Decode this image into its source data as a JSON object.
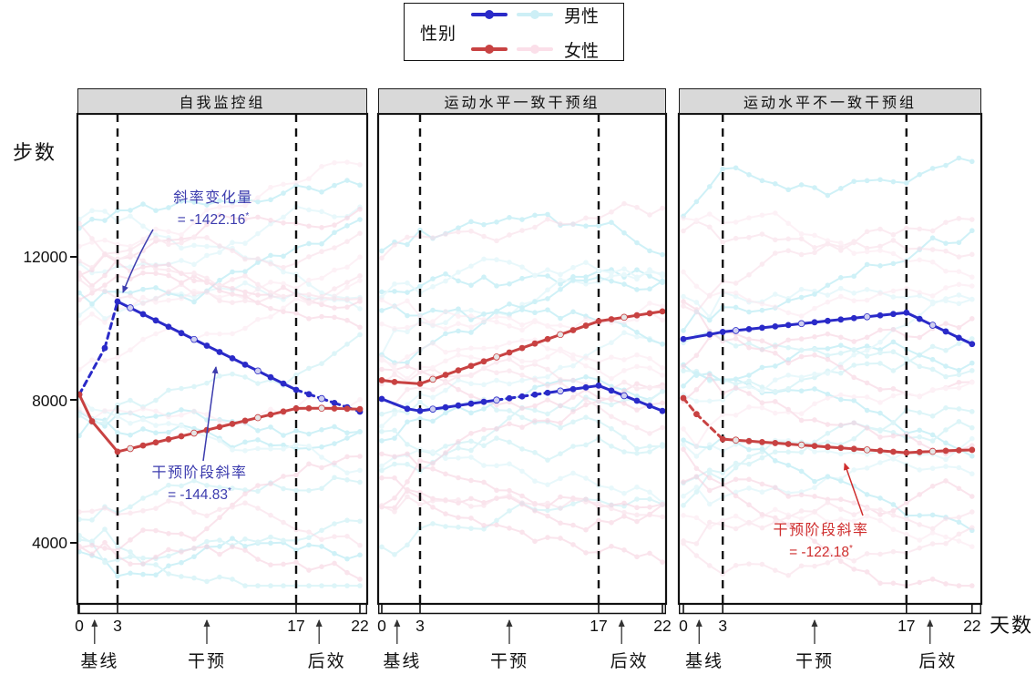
{
  "figure": {
    "background": "#ffffff"
  },
  "legend": {
    "title": "性别",
    "items": [
      {
        "label": "男性",
        "mean_color": "#2a2ac8",
        "individual_color": "#cdeff6"
      },
      {
        "label": "女性",
        "mean_color": "#c84242",
        "individual_color": "#fbdfe9"
      }
    ]
  },
  "axes": {
    "y_title": "步数",
    "x_title": "天数",
    "y_tick_labels": [
      "12000",
      "8000",
      "4000"
    ],
    "x_tick_labels": [
      "0",
      "3",
      "17",
      "22"
    ]
  },
  "individual_trajectories": {
    "count_per_sex_per_panel": 13,
    "opacity": 0.55,
    "male_colors": [
      "#a9e6f1",
      "#d6f3f8",
      "#c2edf4"
    ],
    "female_colors": [
      "#f6cede",
      "#fce7ef",
      "#f9dbe7"
    ]
  },
  "chart_data": {
    "type": "line",
    "xlabel": "天数",
    "ylabel": "步数",
    "x_domain": [
      0,
      22
    ],
    "y_domain": [
      2300,
      16000
    ],
    "y_ticks": [
      12000,
      8000,
      4000
    ],
    "x_ticks": [
      0,
      3,
      17,
      22
    ],
    "reference_lines_x": [
      3,
      17
    ],
    "grid": false,
    "phases": [
      {
        "label": "基线",
        "from": 0,
        "to": 3
      },
      {
        "label": "干预",
        "from": 3,
        "to": 17
      },
      {
        "label": "后效",
        "from": 17,
        "to": 22
      }
    ],
    "facets": [
      {
        "title": "自我监控组",
        "series": [
          {
            "name": "男性",
            "color": "#2a2ac8",
            "light_point_color": "#cfcff0",
            "x": [
              0,
              2,
              3,
              4,
              5,
              6,
              7,
              8,
              9,
              10,
              11,
              12,
              13,
              14,
              15,
              16,
              17,
              18,
              19,
              20,
              21,
              22
            ],
            "y": [
              8150,
              9450,
              10750,
              10574,
              10397,
              10221,
              10044,
              9868,
              9691,
              9515,
              9338,
              9162,
              8985,
              8809,
              8632,
              8456,
              8280,
              8158,
              8036,
              7914,
              7792,
              7670
            ],
            "dashed_x_ranges": [
              [
                0,
                3
              ],
              [
                17,
                22
              ]
            ]
          },
          {
            "name": "女性",
            "color": "#c84242",
            "light_point_color": "#e6e6e6",
            "x": [
              0,
              1,
              3,
              4,
              5,
              6,
              7,
              8,
              9,
              10,
              11,
              12,
              13,
              14,
              15,
              16,
              17,
              18,
              19,
              20,
              21,
              22
            ],
            "y": [
              8150,
              7400,
              6550,
              6636,
              6723,
              6809,
              6896,
              6982,
              7069,
              7155,
              7242,
              7328,
              7415,
              7501,
              7588,
              7674,
              7760,
              7765,
              7765,
              7760,
              7750,
              7740
            ],
            "dashed_x_ranges": []
          }
        ],
        "annotations": [
          {
            "label": "斜率变化量",
            "value": "= -1422.16",
            "sup": "*"
          },
          {
            "label": "干预阶段斜率",
            "value": "= -144.83",
            "sup": "*"
          }
        ]
      },
      {
        "title": "运动水平一致干预组",
        "series": [
          {
            "name": "男性",
            "color": "#2a2ac8",
            "light_point_color": "#cfcff0",
            "x": [
              0,
              2,
              3,
              4,
              5,
              6,
              7,
              8,
              9,
              10,
              11,
              12,
              13,
              14,
              15,
              16,
              17,
              18,
              19,
              20,
              21,
              22
            ],
            "y": [
              8025,
              7750,
              7690,
              7741,
              7791,
              7842,
              7893,
              7944,
              7994,
              8045,
              8096,
              8147,
              8197,
              8248,
              8299,
              8349,
              8400,
              8258,
              8116,
              7974,
              7832,
              7690
            ],
            "dashed_x_ranges": [
              [
                9,
                13
              ]
            ]
          },
          {
            "name": "女性",
            "color": "#c84242",
            "light_point_color": "#e6e6e6",
            "x": [
              0,
              1,
              3,
              4,
              5,
              6,
              7,
              8,
              9,
              10,
              11,
              12,
              13,
              14,
              15,
              16,
              17,
              18,
              19,
              20,
              21,
              22
            ],
            "y": [
              8550,
              8500,
              8450,
              8575,
              8700,
              8825,
              8950,
              9075,
              9200,
              9325,
              9450,
              9575,
              9700,
              9825,
              9950,
              10075,
              10200,
              10255,
              10310,
              10365,
              10420,
              10475
            ],
            "dashed_x_ranges": []
          }
        ],
        "annotations": []
      },
      {
        "title": "运动水平不一致干预组",
        "series": [
          {
            "name": "男性",
            "color": "#2a2ac8",
            "light_point_color": "#cfcff0",
            "x": [
              0,
              2,
              3,
              4,
              5,
              6,
              7,
              8,
              9,
              10,
              11,
              12,
              13,
              14,
              15,
              16,
              17,
              18,
              19,
              20,
              21,
              22
            ],
            "y": [
              9700,
              9830,
              9900,
              9939,
              9977,
              10016,
              10054,
              10093,
              10131,
              10170,
              10209,
              10247,
              10286,
              10324,
              10363,
              10401,
              10440,
              10264,
              10088,
              9912,
              9736,
              9560
            ],
            "dashed_x_ranges": []
          },
          {
            "name": "女性",
            "color": "#c84242",
            "light_point_color": "#e6e6e6",
            "x": [
              0,
              1,
              3,
              4,
              5,
              6,
              7,
              8,
              9,
              10,
              11,
              12,
              13,
              14,
              15,
              16,
              17,
              18,
              19,
              20,
              21,
              22
            ],
            "y": [
              8050,
              7600,
              6900,
              6873,
              6846,
              6819,
              6792,
              6765,
              6737,
              6710,
              6683,
              6656,
              6629,
              6602,
              6575,
              6547,
              6520,
              6540,
              6558,
              6575,
              6590,
              6600
            ],
            "dashed_x_ranges": [
              [
                0,
                3
              ]
            ]
          }
        ],
        "annotations": [
          {
            "label": "干预阶段斜率",
            "value": "= -122.18",
            "sup": "*"
          }
        ]
      }
    ]
  }
}
